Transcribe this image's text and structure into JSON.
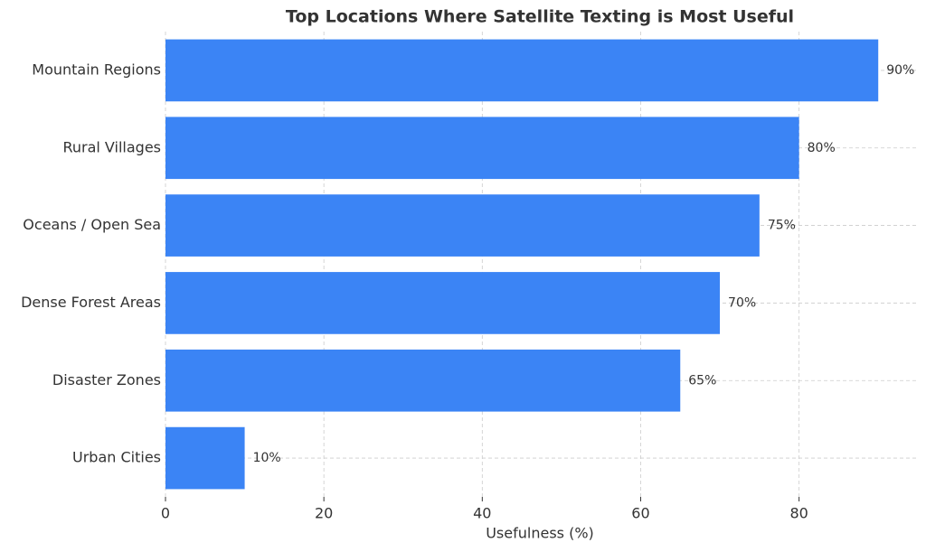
{
  "chart_data": {
    "type": "barh",
    "title": "Top Locations Where Satellite Texting is Most Useful",
    "x_label": "Usefulness (%)",
    "categories": [
      "Mountain Regions",
      "Rural Villages",
      "Oceans / Open Sea",
      "Dense Forest Areas",
      "Disaster Zones",
      "Urban Cities"
    ],
    "values": [
      90,
      80,
      75,
      70,
      65,
      10
    ],
    "value_labels": [
      "90%",
      "80%",
      "75%",
      "70%",
      "65%",
      "10%"
    ],
    "color": "#3b84f5",
    "xlim": [
      0,
      95
    ],
    "xticks": [
      0,
      20,
      40,
      60,
      80
    ],
    "grid": true
  }
}
